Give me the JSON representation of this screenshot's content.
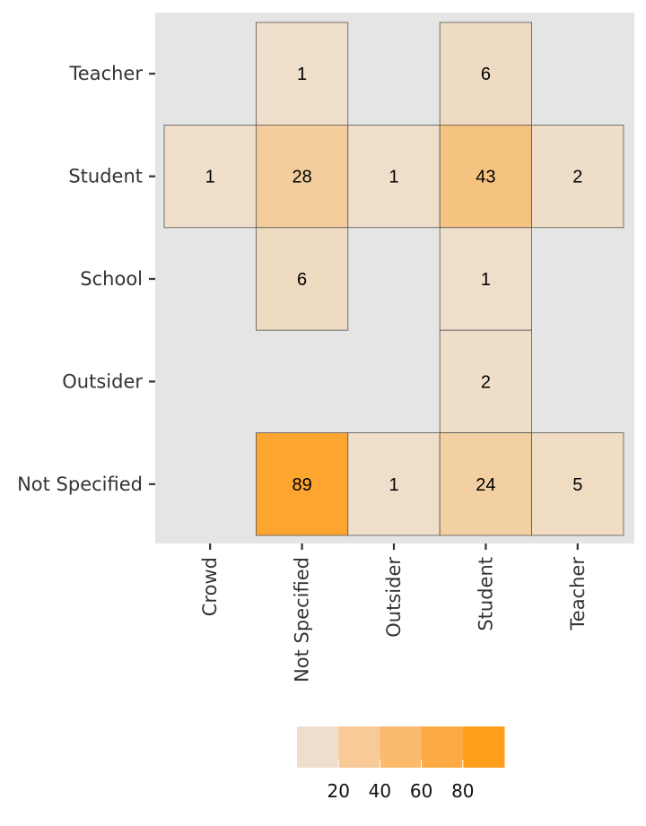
{
  "chart_data": {
    "type": "heatmap",
    "title": "",
    "xlabel": "",
    "ylabel": "",
    "x_categories": [
      "Crowd",
      "Not Specified",
      "Outsider",
      "Student",
      "Teacher"
    ],
    "y_categories": [
      "Not Specified",
      "Outsider",
      "School",
      "Student",
      "Teacher"
    ],
    "cells": [
      {
        "x": "Not Specified",
        "y": "Teacher",
        "value": 1
      },
      {
        "x": "Student",
        "y": "Teacher",
        "value": 6
      },
      {
        "x": "Crowd",
        "y": "Student",
        "value": 1
      },
      {
        "x": "Not Specified",
        "y": "Student",
        "value": 28
      },
      {
        "x": "Outsider",
        "y": "Student",
        "value": 1
      },
      {
        "x": "Student",
        "y": "Student",
        "value": 43
      },
      {
        "x": "Teacher",
        "y": "Student",
        "value": 2
      },
      {
        "x": "Not Specified",
        "y": "School",
        "value": 6
      },
      {
        "x": "Student",
        "y": "School",
        "value": 1
      },
      {
        "x": "Student",
        "y": "Outsider",
        "value": 2
      },
      {
        "x": "Not Specified",
        "y": "Not Specified",
        "value": 89
      },
      {
        "x": "Outsider",
        "y": "Not Specified",
        "value": 1
      },
      {
        "x": "Student",
        "y": "Not Specified",
        "value": 24
      },
      {
        "x": "Teacher",
        "y": "Not Specified",
        "value": 5
      }
    ],
    "legend": {
      "position": "bottom",
      "breaks": [
        20,
        40,
        60,
        80
      ],
      "colors": [
        "#EEDFCC",
        "#F8CA98",
        "#FCBA6C",
        "#FDAA45",
        "#FF9F1C"
      ],
      "range": [
        0,
        100
      ]
    },
    "panel_background": "#E5E5E5",
    "cell_border": "#555555",
    "grid": false
  }
}
